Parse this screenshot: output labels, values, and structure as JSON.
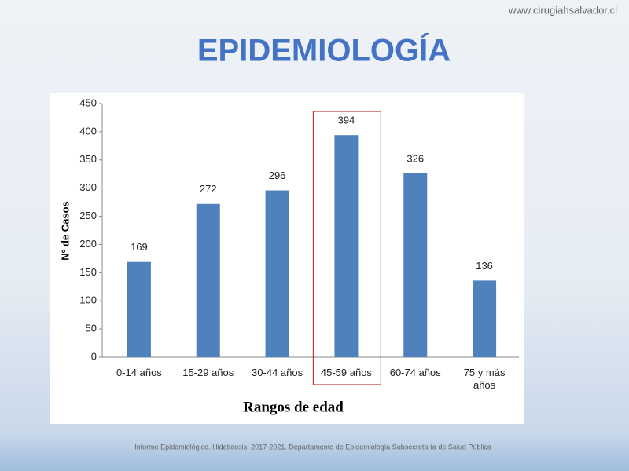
{
  "site": "www.cirugiahsalvador.cl",
  "footer": "Informe Epidemiológico. Hidatidosis. 2017-2021. Departamento de Epidemiología Subsecretaría de Salud Pública",
  "chart_data": {
    "type": "bar",
    "title": "EPIDEMIOLOGÍA",
    "categories": [
      "0-14 años",
      "15-29 años",
      "30-44 años",
      "45-59 años",
      "60-74 años",
      "75 y más años"
    ],
    "values": [
      169,
      272,
      296,
      394,
      326,
      136
    ],
    "color": "#4f81bd",
    "ylim": [
      0,
      450
    ],
    "yticks": [
      0,
      50,
      100,
      150,
      200,
      250,
      300,
      350,
      400,
      450
    ],
    "y_label": "Nº de Casos",
    "x_label": "Rangos de edad",
    "highlight": 3
  }
}
